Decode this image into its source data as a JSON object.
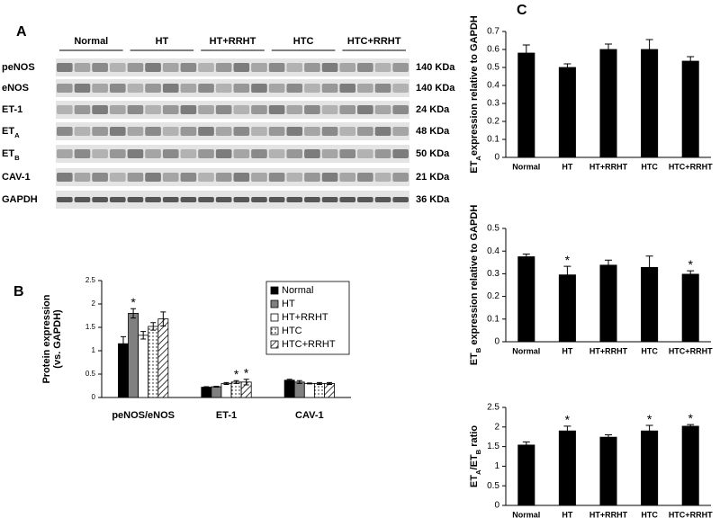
{
  "blot": {
    "panel": "A",
    "groups": [
      "Normal",
      "HT",
      "HT+RRHT",
      "HTC",
      "HTC+RRHT"
    ],
    "rows": [
      {
        "label": [
          {
            "text": "peNOS"
          }
        ],
        "size": "140 KDa"
      },
      {
        "label": [
          {
            "text": "eNOS"
          }
        ],
        "size": "140 KDa"
      },
      {
        "label": [
          {
            "text": "ET-1"
          }
        ],
        "size": "24 KDa"
      },
      {
        "label": [
          {
            "text": "ET"
          },
          {
            "text": "A",
            "sub": true
          }
        ],
        "size": "48 KDa"
      },
      {
        "label": [
          {
            "text": "ET"
          },
          {
            "text": "B",
            "sub": true
          }
        ],
        "size": "50 KDa"
      },
      {
        "label": [
          {
            "text": "CAV-1"
          }
        ],
        "size": "21 KDa"
      },
      {
        "label": [
          {
            "text": "GAPDH"
          }
        ],
        "size": "36 KDa"
      }
    ]
  },
  "chart_data": [
    {
      "type": "bar",
      "panel": "B",
      "ylabel": [
        [
          {
            "text": "Protein expression"
          }
        ],
        [
          {
            "text": "(vs. GAPDH)"
          }
        ]
      ],
      "categories": [
        "peNOS/eNOS",
        "ET-1",
        "CAV-1"
      ],
      "series": [
        {
          "name": "Normal",
          "color": "#000000",
          "pattern": "solid",
          "values": [
            1.15,
            0.22,
            0.37
          ],
          "errors": [
            0.15,
            0.01,
            0.02
          ],
          "markers": [
            null,
            null,
            null
          ]
        },
        {
          "name": "HT",
          "color": "#808080",
          "pattern": "solid",
          "values": [
            1.8,
            0.23,
            0.33
          ],
          "errors": [
            0.1,
            0.01,
            0.03
          ],
          "markers": [
            "*",
            null,
            null
          ]
        },
        {
          "name": "HT+RRHT",
          "color": "#ffffff",
          "pattern": "solid",
          "values": [
            1.33,
            0.3,
            0.3
          ],
          "errors": [
            0.08,
            0.02,
            0.01
          ],
          "markers": [
            null,
            null,
            null
          ]
        },
        {
          "name": "HTC",
          "color": "#ffffff",
          "pattern": "dots",
          "values": [
            1.52,
            0.33,
            0.3
          ],
          "errors": [
            0.08,
            0.03,
            0.02
          ],
          "markers": [
            null,
            "*",
            null
          ]
        },
        {
          "name": "HTC+RRHT",
          "color": "#ffffff",
          "pattern": "hatch",
          "values": [
            1.68,
            0.33,
            0.3
          ],
          "errors": [
            0.15,
            0.06,
            0.02
          ],
          "markers": [
            null,
            "*",
            null
          ]
        }
      ],
      "ylim": [
        0,
        2.5
      ],
      "yticks": [
        0,
        0.5,
        1,
        1.5,
        2,
        2.5
      ],
      "legend": "top-right"
    },
    {
      "type": "bar",
      "panel": "C",
      "ylabel": [
        [
          {
            "text": "ET"
          },
          {
            "text": "A",
            "sub": true
          },
          {
            "text": "expression relative to GAPDH"
          }
        ]
      ],
      "categories": [
        "Normal",
        "HT",
        "HT+RRHT",
        "HTC",
        "HTC+RRHT"
      ],
      "series": [
        {
          "color": "#000000",
          "pattern": "solid",
          "values": [
            0.58,
            0.5,
            0.6,
            0.6,
            0.535
          ],
          "errors": [
            0.045,
            0.02,
            0.03,
            0.055,
            0.025
          ],
          "markers": [
            null,
            null,
            null,
            null,
            null
          ]
        }
      ],
      "ylim": [
        0,
        0.7
      ],
      "yticks": [
        0,
        0.1,
        0.2,
        0.3,
        0.4,
        0.5,
        0.6,
        0.7
      ]
    },
    {
      "type": "bar",
      "ylabel": [
        [
          {
            "text": "ET"
          },
          {
            "text": "B",
            "sub": true
          },
          {
            "text": " expression relative to GAPDH"
          }
        ]
      ],
      "categories": [
        "Normal",
        "HT",
        "HT+RRHT",
        "HTC",
        "HTC+RRHT"
      ],
      "series": [
        {
          "color": "#000000",
          "pattern": "solid",
          "values": [
            0.375,
            0.295,
            0.338,
            0.328,
            0.298
          ],
          "errors": [
            0.012,
            0.038,
            0.022,
            0.05,
            0.015
          ],
          "markers": [
            null,
            "*",
            null,
            null,
            "*"
          ]
        }
      ],
      "ylim": [
        0,
        0.5
      ],
      "yticks": [
        0,
        0.1,
        0.2,
        0.3,
        0.4,
        0.5
      ]
    },
    {
      "type": "bar",
      "ylabel": [
        [
          {
            "text": "ET"
          },
          {
            "text": "A",
            "sub": true
          },
          {
            "text": "/ET"
          },
          {
            "text": "B",
            "sub": true
          },
          {
            "text": " ratio"
          }
        ]
      ],
      "categories": [
        "Normal",
        "HT",
        "HT+RRHT",
        "HTC",
        "HTC+RRHT"
      ],
      "series": [
        {
          "color": "#000000",
          "pattern": "solid",
          "values": [
            1.54,
            1.9,
            1.74,
            1.9,
            2.02
          ],
          "errors": [
            0.08,
            0.12,
            0.06,
            0.14,
            0.04
          ],
          "markers": [
            null,
            "*",
            null,
            "*",
            "*"
          ]
        }
      ],
      "ylim": [
        0,
        2.5
      ],
      "yticks": [
        0,
        0.5,
        1,
        1.5,
        2,
        2.5
      ]
    }
  ]
}
